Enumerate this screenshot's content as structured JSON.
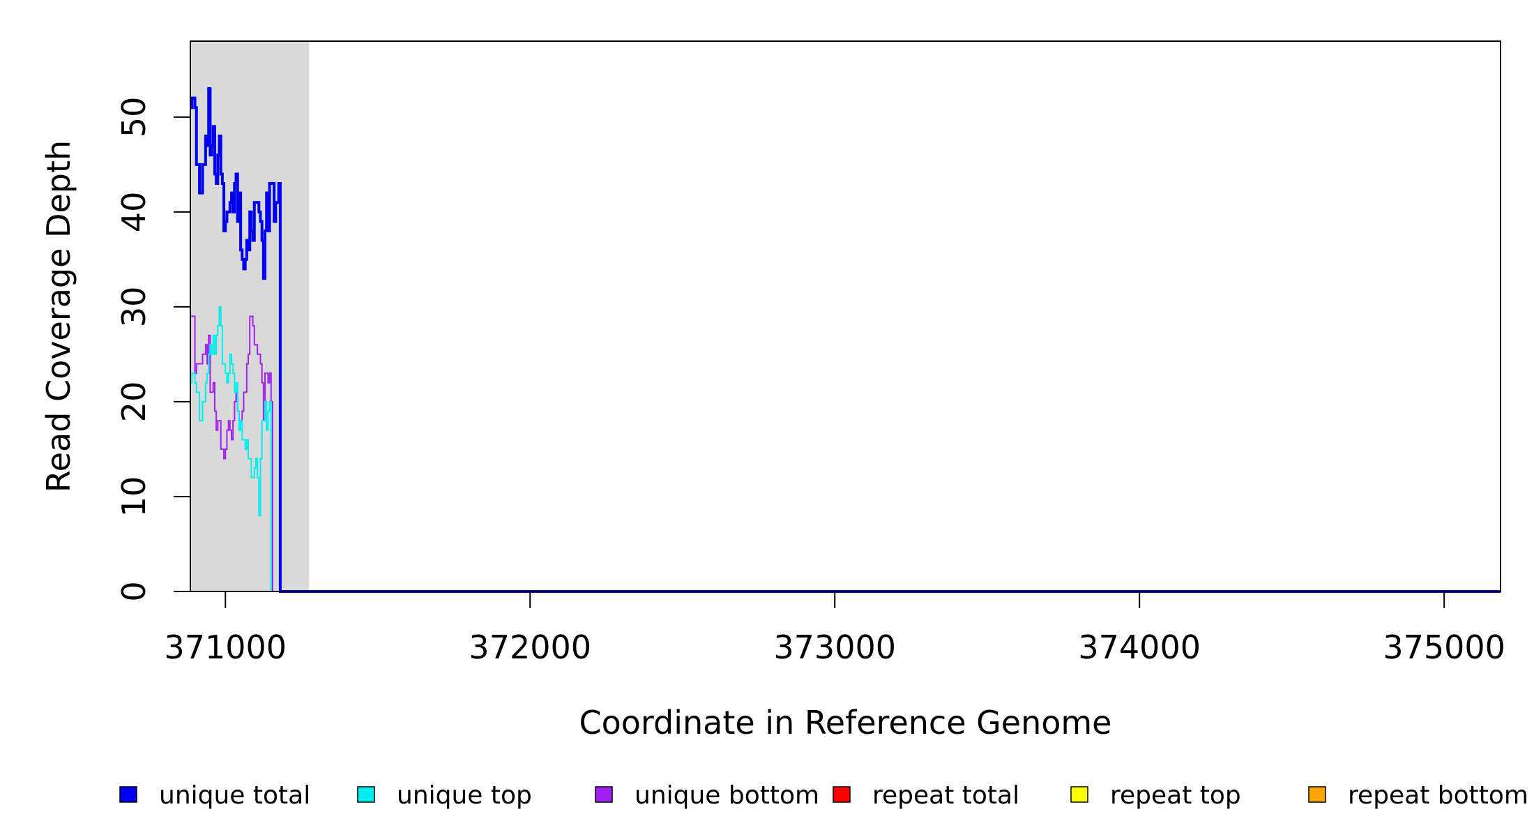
{
  "chart_data": {
    "type": "line",
    "title": "",
    "xlabel": "Coordinate in Reference Genome",
    "ylabel": "Read Coverage Depth",
    "xlim": [
      370885,
      375185
    ],
    "ylim": [
      0,
      58
    ],
    "xticks": [
      371000,
      372000,
      373000,
      374000,
      375000
    ],
    "yticks": [
      0,
      10,
      20,
      30,
      40,
      50
    ],
    "grid": false,
    "legend_position": "bottom",
    "shaded_region": {
      "x": [
        370885,
        371275
      ],
      "color": "#d9d9d9"
    },
    "series": [
      {
        "name": "unique total",
        "color": "#0000ee",
        "line_width": 4,
        "x": [
          370885,
          370890,
          370900,
          370905,
          370915,
          370925,
          370935,
          370940,
          370945,
          370950,
          370955,
          370960,
          370965,
          370970,
          370975,
          370980,
          370985,
          370990,
          370995,
          371000,
          371005,
          371010,
          371015,
          371020,
          371025,
          371030,
          371035,
          371040,
          371045,
          371050,
          371055,
          371060,
          371065,
          371070,
          371075,
          371080,
          371085,
          371090,
          371095,
          371100,
          371105,
          371110,
          371115,
          371120,
          371125,
          371130,
          371135,
          371140,
          371145,
          371150,
          371155,
          371160,
          371165,
          371170,
          371175,
          371180,
          371185,
          371190,
          371195,
          371200,
          371205,
          371210,
          371215,
          371220,
          371225,
          371230,
          371235,
          371240,
          371245,
          371250,
          371255,
          371260,
          371265,
          371270,
          371275,
          371280,
          372000,
          373000,
          374000,
          375000,
          375185
        ],
        "values": [
          51,
          52,
          51,
          45,
          42,
          45,
          48,
          47,
          53,
          46,
          47,
          49,
          44,
          43,
          46,
          48,
          44,
          43,
          38,
          39,
          40,
          40,
          41,
          42,
          40,
          43,
          44,
          39,
          42,
          36,
          35,
          34,
          35,
          37,
          36,
          40,
          38,
          37,
          41,
          41,
          41,
          40,
          39,
          37,
          33,
          38,
          42,
          38,
          43,
          43,
          43,
          39,
          41,
          41,
          43,
          0,
          0,
          0,
          0,
          0,
          0,
          0,
          0,
          0,
          0,
          0,
          0,
          0,
          0,
          0,
          0,
          0,
          0,
          0,
          0,
          0,
          0,
          0,
          0,
          0,
          0
        ]
      },
      {
        "name": "unique top",
        "color": "#00eeee",
        "line_width": 2,
        "x": [
          370885,
          370890,
          370900,
          370905,
          370915,
          370925,
          370935,
          370940,
          370945,
          370950,
          370955,
          370960,
          370965,
          370970,
          370975,
          370980,
          370985,
          370990,
          370995,
          371000,
          371005,
          371010,
          371015,
          371020,
          371025,
          371030,
          371035,
          371040,
          371045,
          371050,
          371055,
          371060,
          371065,
          371070,
          371075,
          371080,
          371085,
          371090,
          371095,
          371100,
          371105,
          371110,
          371115,
          371120,
          371125,
          371130,
          371135,
          371140,
          371145,
          371150,
          371155,
          371160,
          371165,
          371170,
          371175,
          371180,
          371185,
          371190,
          371195,
          371200,
          371205,
          371210,
          371215,
          371220,
          371225,
          371230,
          371235,
          371240,
          371245,
          371250,
          371255,
          371260,
          371265,
          371270,
          371275,
          371280,
          372000,
          373000,
          374000,
          375000,
          375185
        ],
        "values": [
          22,
          23,
          22,
          21,
          18,
          20,
          22,
          23,
          25,
          26,
          25,
          27,
          25,
          27,
          28,
          30,
          28,
          24,
          24,
          23,
          22,
          23,
          25,
          24,
          23,
          21,
          22,
          19,
          17,
          18,
          16,
          16,
          15,
          16,
          14,
          14,
          12,
          12,
          13,
          14,
          12,
          8,
          14,
          18,
          18,
          20,
          17,
          19,
          20,
          0,
          0,
          0,
          0,
          0,
          0,
          0,
          0,
          0,
          0,
          0,
          0,
          0,
          0,
          0,
          0,
          0,
          0,
          0,
          0,
          0,
          0,
          0,
          0,
          0,
          0,
          0,
          0,
          0,
          0,
          0,
          0
        ]
      },
      {
        "name": "unique bottom",
        "color": "#a020f0",
        "line_width": 2,
        "x": [
          370885,
          370890,
          370900,
          370905,
          370915,
          370925,
          370935,
          370940,
          370945,
          370950,
          370955,
          370960,
          370965,
          370970,
          370975,
          370980,
          370985,
          370990,
          370995,
          371000,
          371005,
          371010,
          371015,
          371020,
          371025,
          371030,
          371035,
          371040,
          371045,
          371050,
          371055,
          371060,
          371065,
          371070,
          371075,
          371080,
          371085,
          371090,
          371095,
          371100,
          371105,
          371110,
          371115,
          371120,
          371125,
          371130,
          371135,
          371140,
          371145,
          371150,
          371155,
          371160,
          371165,
          371170,
          371175,
          371180,
          371185,
          371190,
          371195,
          371200,
          371205,
          371210,
          371215,
          371220,
          371225,
          371230,
          371235,
          371240,
          371245,
          371250,
          371255,
          371260,
          371265,
          371270,
          371275,
          371280,
          372000,
          373000,
          374000,
          375000,
          375185
        ],
        "values": [
          29,
          29,
          23,
          24,
          24,
          25,
          26,
          24,
          27,
          21,
          21,
          22,
          19,
          17,
          18,
          18,
          15,
          15,
          14,
          15,
          17,
          18,
          17,
          16,
          18,
          20,
          21,
          19,
          18,
          18,
          19,
          21,
          21,
          24,
          25,
          29,
          29,
          28,
          26,
          26,
          25,
          25,
          24,
          22,
          18,
          23,
          23,
          22,
          23,
          20,
          0,
          0,
          0,
          0,
          0,
          0,
          0,
          0,
          0,
          0,
          0,
          0,
          0,
          0,
          0,
          0,
          0,
          0,
          0,
          0,
          0,
          0,
          0,
          0,
          0,
          0,
          0,
          0,
          0,
          0,
          0
        ]
      },
      {
        "name": "repeat total",
        "color": "#ff0000",
        "line_width": 2,
        "x": [
          370885,
          375185
        ],
        "values": [
          0,
          0
        ]
      },
      {
        "name": "repeat top",
        "color": "#ffff00",
        "line_width": 2,
        "x": [
          370885,
          375185
        ],
        "values": [
          0,
          0
        ]
      },
      {
        "name": "repeat bottom",
        "color": "#ffa500",
        "line_width": 2,
        "x": [
          370885,
          375185
        ],
        "values": [
          0,
          0
        ]
      }
    ]
  }
}
